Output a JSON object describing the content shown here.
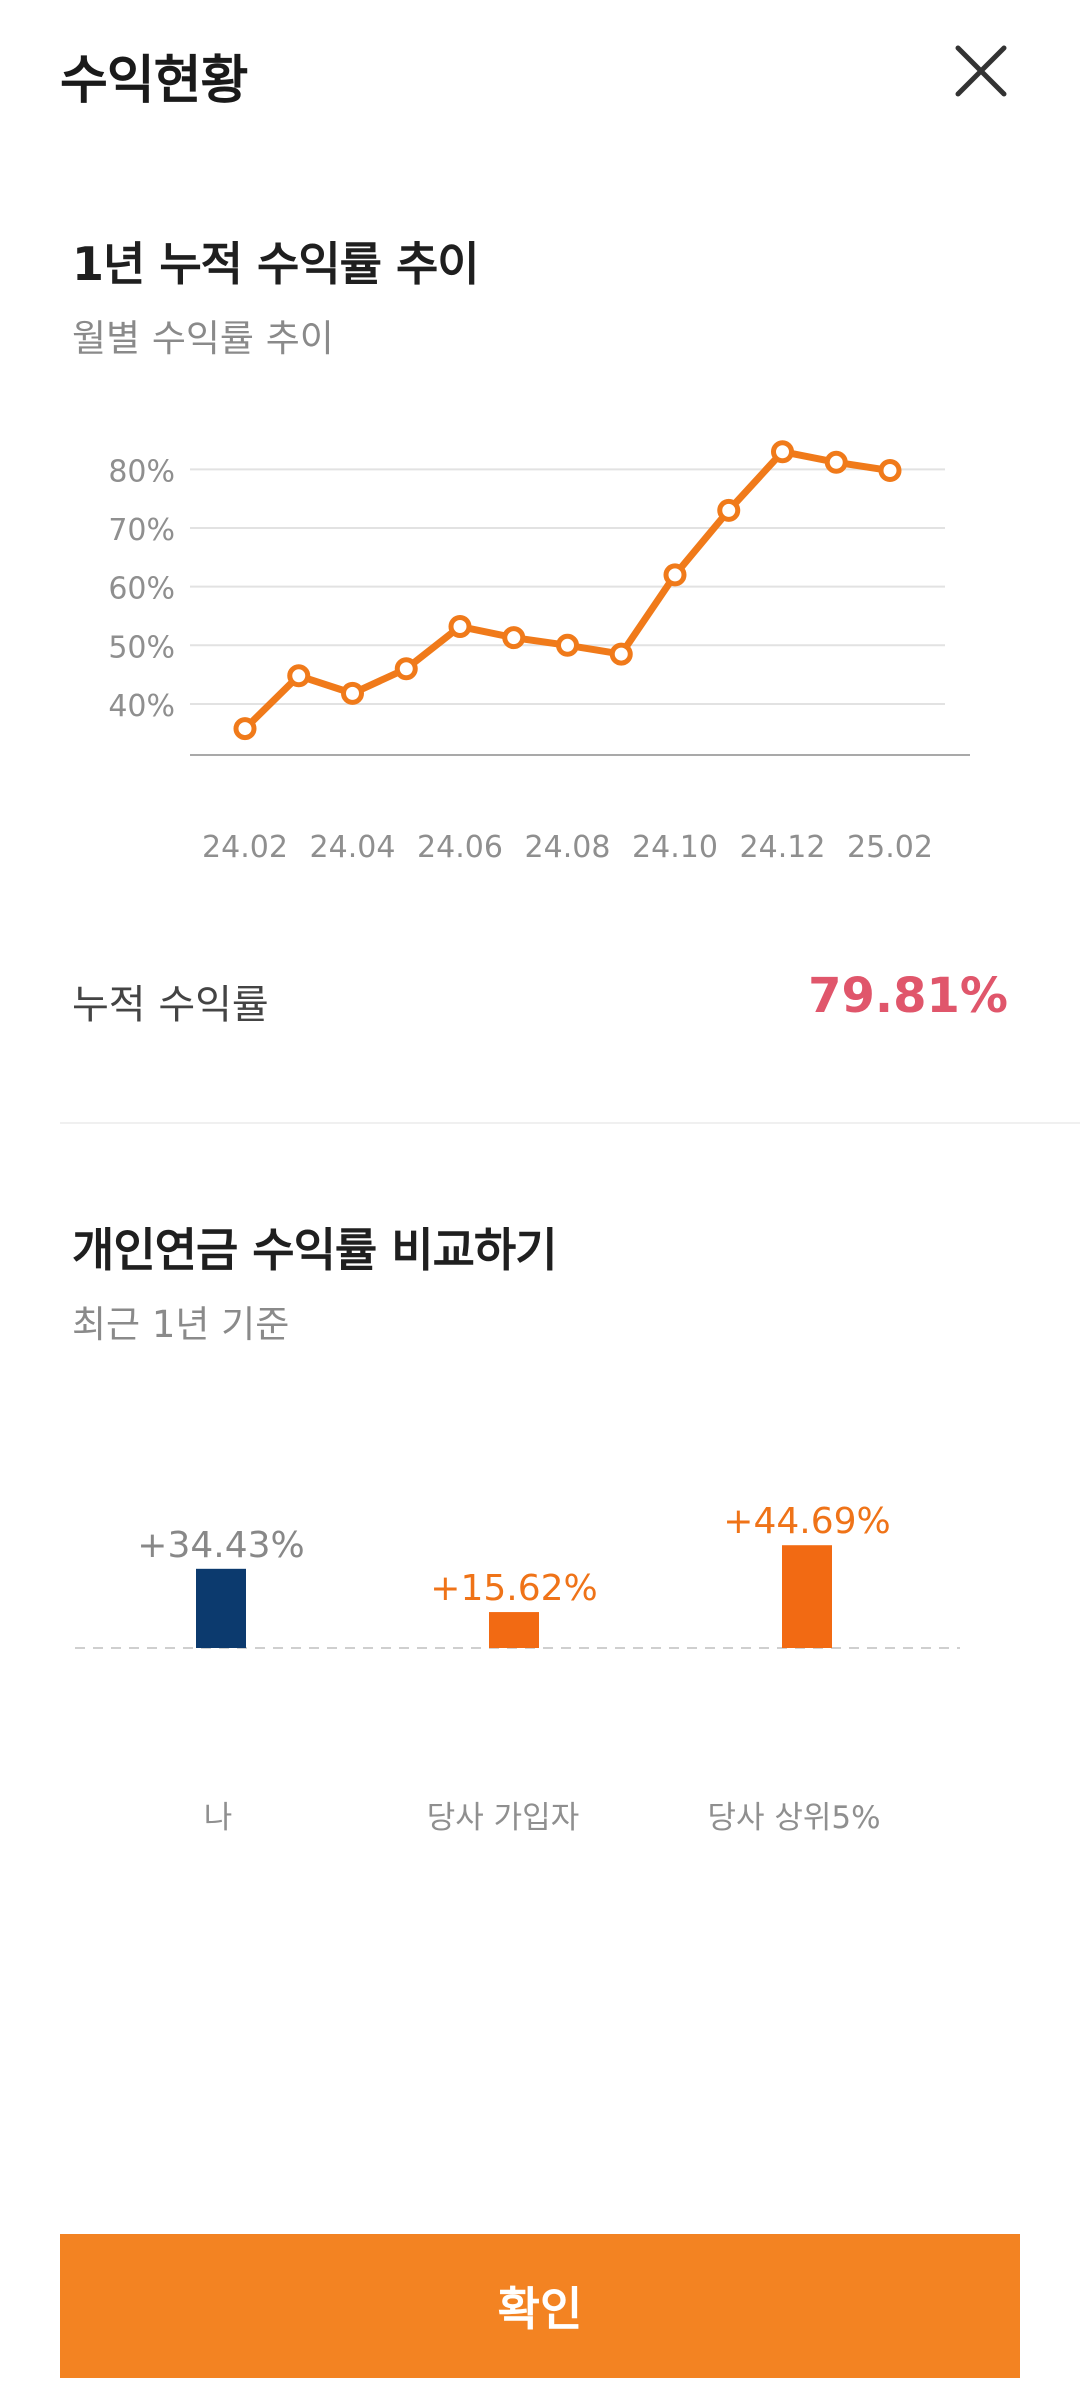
{
  "header": {
    "title": "수익현황",
    "close_icon": "close-icon"
  },
  "trend": {
    "title": "1년 누적 수익률 추이",
    "subtitle": "월별 수익률 추이"
  },
  "summary": {
    "label": "누적 수익률",
    "value": "79.81%",
    "value_color": "#e0566b"
  },
  "compare": {
    "title": "개인연금 수익률 비교하기",
    "subtitle": "최근 1년 기준"
  },
  "confirm": {
    "label": "확인",
    "color": "#f38322"
  },
  "chart_data": [
    {
      "type": "line",
      "x": [
        "24.02",
        "24.03",
        "24.04",
        "24.05",
        "24.06",
        "24.07",
        "24.08",
        "24.09",
        "24.10",
        "24.11",
        "24.12",
        "25.01",
        "25.02"
      ],
      "x_tick_labels": [
        "24.02",
        "24.04",
        "24.06",
        "24.08",
        "24.10",
        "24.12",
        "25.02"
      ],
      "series": [
        {
          "values": [
            35.8,
            44.8,
            41.8,
            46.0,
            53.2,
            51.3,
            50.0,
            48.5,
            62.0,
            73.0,
            83.0,
            81.2,
            79.8
          ]
        }
      ],
      "y_tick_labels": [
        "40%",
        "50%",
        "60%",
        "70%",
        "80%"
      ],
      "ylim": [
        33,
        85
      ],
      "yticks": [
        40,
        50,
        60,
        70,
        80
      ],
      "grid": true,
      "line_color": "#f07a1a"
    },
    {
      "type": "bar",
      "categories": [
        "나",
        "당사 가입자",
        "당사 상위5%"
      ],
      "values": [
        34.43,
        15.62,
        44.69
      ],
      "value_labels": [
        "+34.43%",
        "+15.62%",
        "+44.69%"
      ],
      "bar_colors": [
        "#0c3a6e",
        "#f26a13",
        "#f26a13"
      ],
      "label_colors": [
        "#888888",
        "#ef7318",
        "#ef7318"
      ]
    }
  ]
}
